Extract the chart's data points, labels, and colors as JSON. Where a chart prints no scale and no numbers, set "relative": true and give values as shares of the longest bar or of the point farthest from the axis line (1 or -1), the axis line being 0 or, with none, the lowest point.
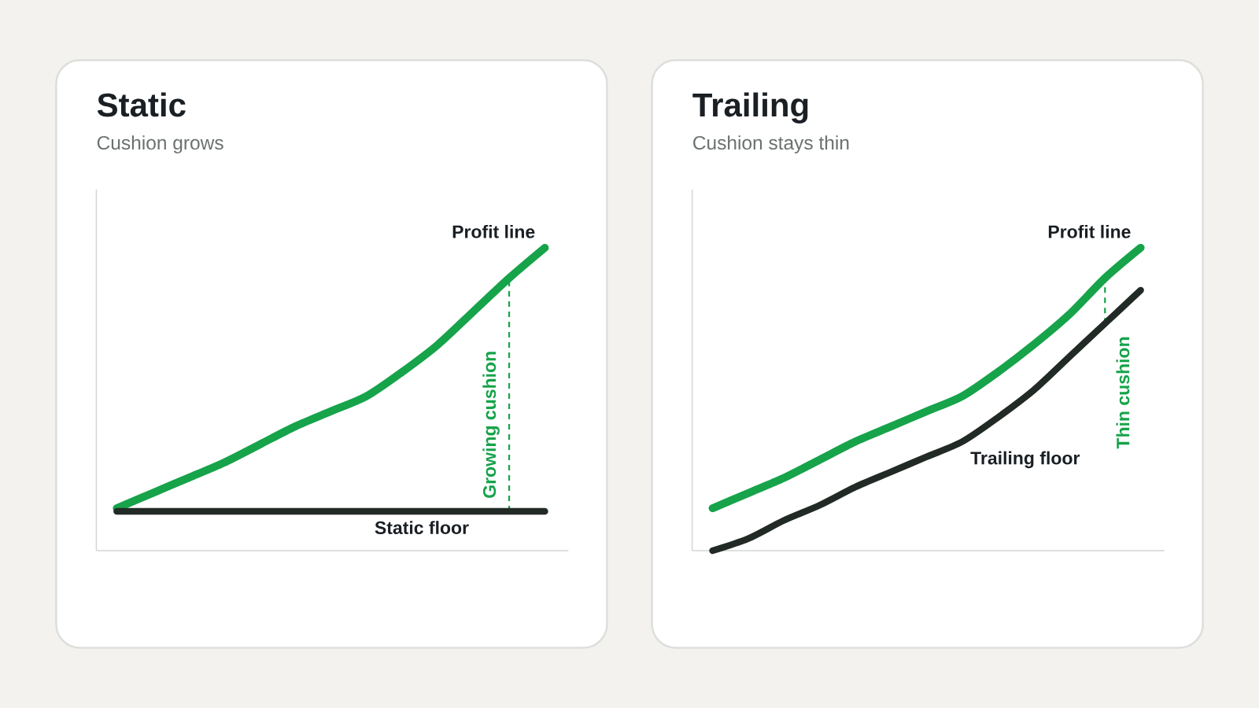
{
  "chart_data": [
    {
      "type": "line",
      "title": "Static",
      "subtitle": "Cushion grows",
      "relative": true,
      "categories": [
        null,
        null,
        null,
        null,
        null,
        null,
        null,
        null,
        null,
        null,
        null,
        null,
        null
      ],
      "series": [
        {
          "name": "Profit line",
          "color": "#16a34a",
          "values": [
            0.14,
            0.19,
            0.24,
            0.29,
            0.35,
            0.41,
            0.46,
            0.51,
            0.59,
            0.68,
            0.79,
            0.9,
            1
          ]
        },
        {
          "name": "Static floor",
          "color": "#222a26",
          "values": [
            0.13,
            0.13,
            0.13,
            0.13,
            0.13,
            0.13,
            0.13,
            0.13,
            0.13,
            0.13,
            0.13,
            0.13,
            0.13
          ]
        }
      ],
      "annotations": [
        "Growing cushion"
      ]
    },
    {
      "type": "line",
      "title": "Trailing",
      "subtitle": "Cushion stays thin",
      "relative": true,
      "categories": [
        null,
        null,
        null,
        null,
        null,
        null,
        null,
        null,
        null,
        null,
        null,
        null,
        null
      ],
      "series": [
        {
          "name": "Profit line",
          "color": "#16a34a",
          "values": [
            0.14,
            0.19,
            0.24,
            0.3,
            0.36,
            0.41,
            0.46,
            0.51,
            0.59,
            0.68,
            0.78,
            0.9,
            1
          ]
        },
        {
          "name": "Trailing floor",
          "color": "#222a26",
          "values": [
            0,
            0.04,
            0.1,
            0.15,
            0.21,
            0.26,
            0.31,
            0.36,
            0.44,
            0.53,
            0.64,
            0.75,
            0.86
          ]
        }
      ],
      "annotations": [
        "Thin cushion"
      ]
    }
  ]
}
